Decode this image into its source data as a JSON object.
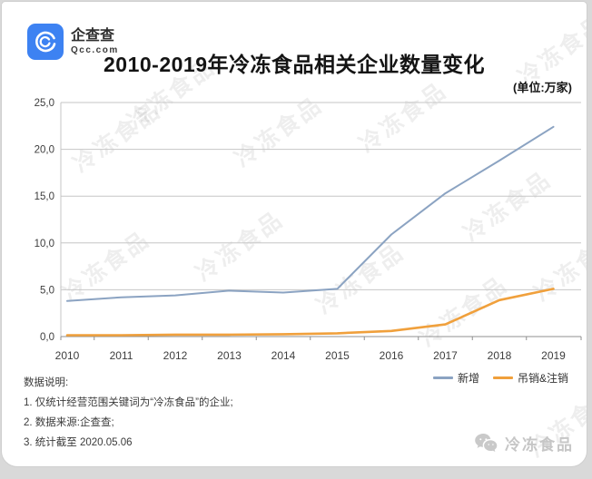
{
  "logo": {
    "name": "企查查",
    "domain": "Qcc.com"
  },
  "header": {
    "title": "2010-2019年冷冻食品相关企业数量变化",
    "unit_label": "(单位:万家)"
  },
  "notes": {
    "heading": "数据说明:",
    "items": [
      "1. 仅统计经营范围关键词为“冷冻食品”的企业;",
      "2. 数据来源:企查查;",
      "3. 统计截至 2020.05.06"
    ]
  },
  "watermark": {
    "text": "冷冻食品"
  },
  "footer_watermark": {
    "text": "冷冻食品"
  },
  "colors": {
    "brand_blue": "#3d82f2",
    "series_new": "#8ba3c2",
    "series_revoked": "#f0a03c",
    "gridline": "#c6c6c6",
    "axis": "#8f8f8f"
  },
  "chart_data": {
    "type": "line",
    "title": "2010-2019年冷冻食品相关企业数量变化",
    "unit": "万家",
    "categories": [
      "2010",
      "2011",
      "2012",
      "2013",
      "2014",
      "2015",
      "2016",
      "2017",
      "2018",
      "2019"
    ],
    "series": [
      {
        "name": "新增",
        "color": "#8ba3c2",
        "values": [
          3.8,
          4.2,
          4.4,
          4.9,
          4.7,
          5.1,
          10.9,
          15.3,
          18.8,
          22.4
        ]
      },
      {
        "name": "吊销&注销",
        "color": "#f0a03c",
        "values": [
          0.15,
          0.15,
          0.2,
          0.2,
          0.25,
          0.35,
          0.6,
          1.3,
          3.9,
          5.1
        ]
      }
    ],
    "ylim": [
      0,
      25
    ],
    "ytick_interval": 5,
    "ytick_labels": [
      "0,0",
      "5,0",
      "10,0",
      "15,0",
      "20,0",
      "25,0"
    ],
    "xlabel": "",
    "ylabel": "",
    "grid": true,
    "legend_position": "bottom-right"
  }
}
